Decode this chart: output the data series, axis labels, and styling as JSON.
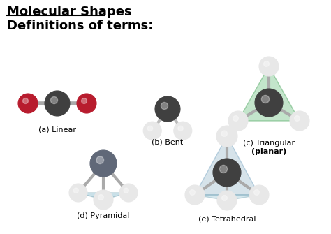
{
  "title_line1": "Molecular Shapes",
  "title_line2": "Definitions of terms:",
  "bg_color": "#ffffff",
  "labels": {
    "linear": "(a) Linear",
    "bent": "(b) Bent",
    "triangular": "(c) Triangular",
    "planar": "(planar)",
    "pyramidal": "(d) Pyramidal",
    "tetrahedral": "(e) Tetrahedral"
  },
  "colors": {
    "dark_gray": "#404040",
    "red": "#b81c2e",
    "light_gray": "#d0d0d0",
    "white_atom": "#e8e8e8",
    "bond_gray": "#999999",
    "green_face": "#7fbf7f",
    "blue_face": "#7faabf",
    "teal_face": "#8fbfbf"
  }
}
